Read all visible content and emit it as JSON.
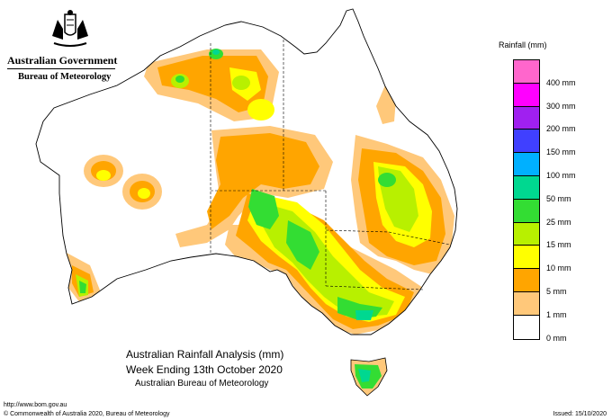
{
  "branding": {
    "government": "Australian Government",
    "bureau": "Bureau of Meteorology",
    "crest_icon": "commonwealth-coat-of-arms"
  },
  "legend": {
    "title": "Rainfall (mm)",
    "items": [
      {
        "label": "400 mm",
        "color": "#ff66cc"
      },
      {
        "label": "300 mm",
        "color": "#ff00ff"
      },
      {
        "label": "200 mm",
        "color": "#a020f0"
      },
      {
        "label": "150 mm",
        "color": "#4040ff"
      },
      {
        "label": "100 mm",
        "color": "#00b0ff"
      },
      {
        "label": "50 mm",
        "color": "#00d890"
      },
      {
        "label": "25 mm",
        "color": "#33dd33"
      },
      {
        "label": "15 mm",
        "color": "#b8f000"
      },
      {
        "label": "10 mm",
        "color": "#ffff00"
      },
      {
        "label": "5 mm",
        "color": "#ffa500"
      },
      {
        "label": "1 mm",
        "color": "#ffc87a"
      },
      {
        "label": "0 mm",
        "color": "#ffffff"
      }
    ]
  },
  "map_title": {
    "line1": "Australian Rainfall Analysis (mm)",
    "line2": "Week Ending 13th October 2020",
    "line3": "Australian Bureau of Meteorology"
  },
  "footer": {
    "url": "http://www.bom.gov.au",
    "copyright": "© Commonwealth of Australia 2020, Bureau of Meteorology",
    "issued": "Issued: 15/10/2020"
  },
  "colors": {
    "c1": "#ffc87a",
    "c5": "#ffa500",
    "c10": "#ffff00",
    "c15": "#b8f000",
    "c25": "#33dd33",
    "c50": "#00d890",
    "c100": "#00b0ff"
  }
}
